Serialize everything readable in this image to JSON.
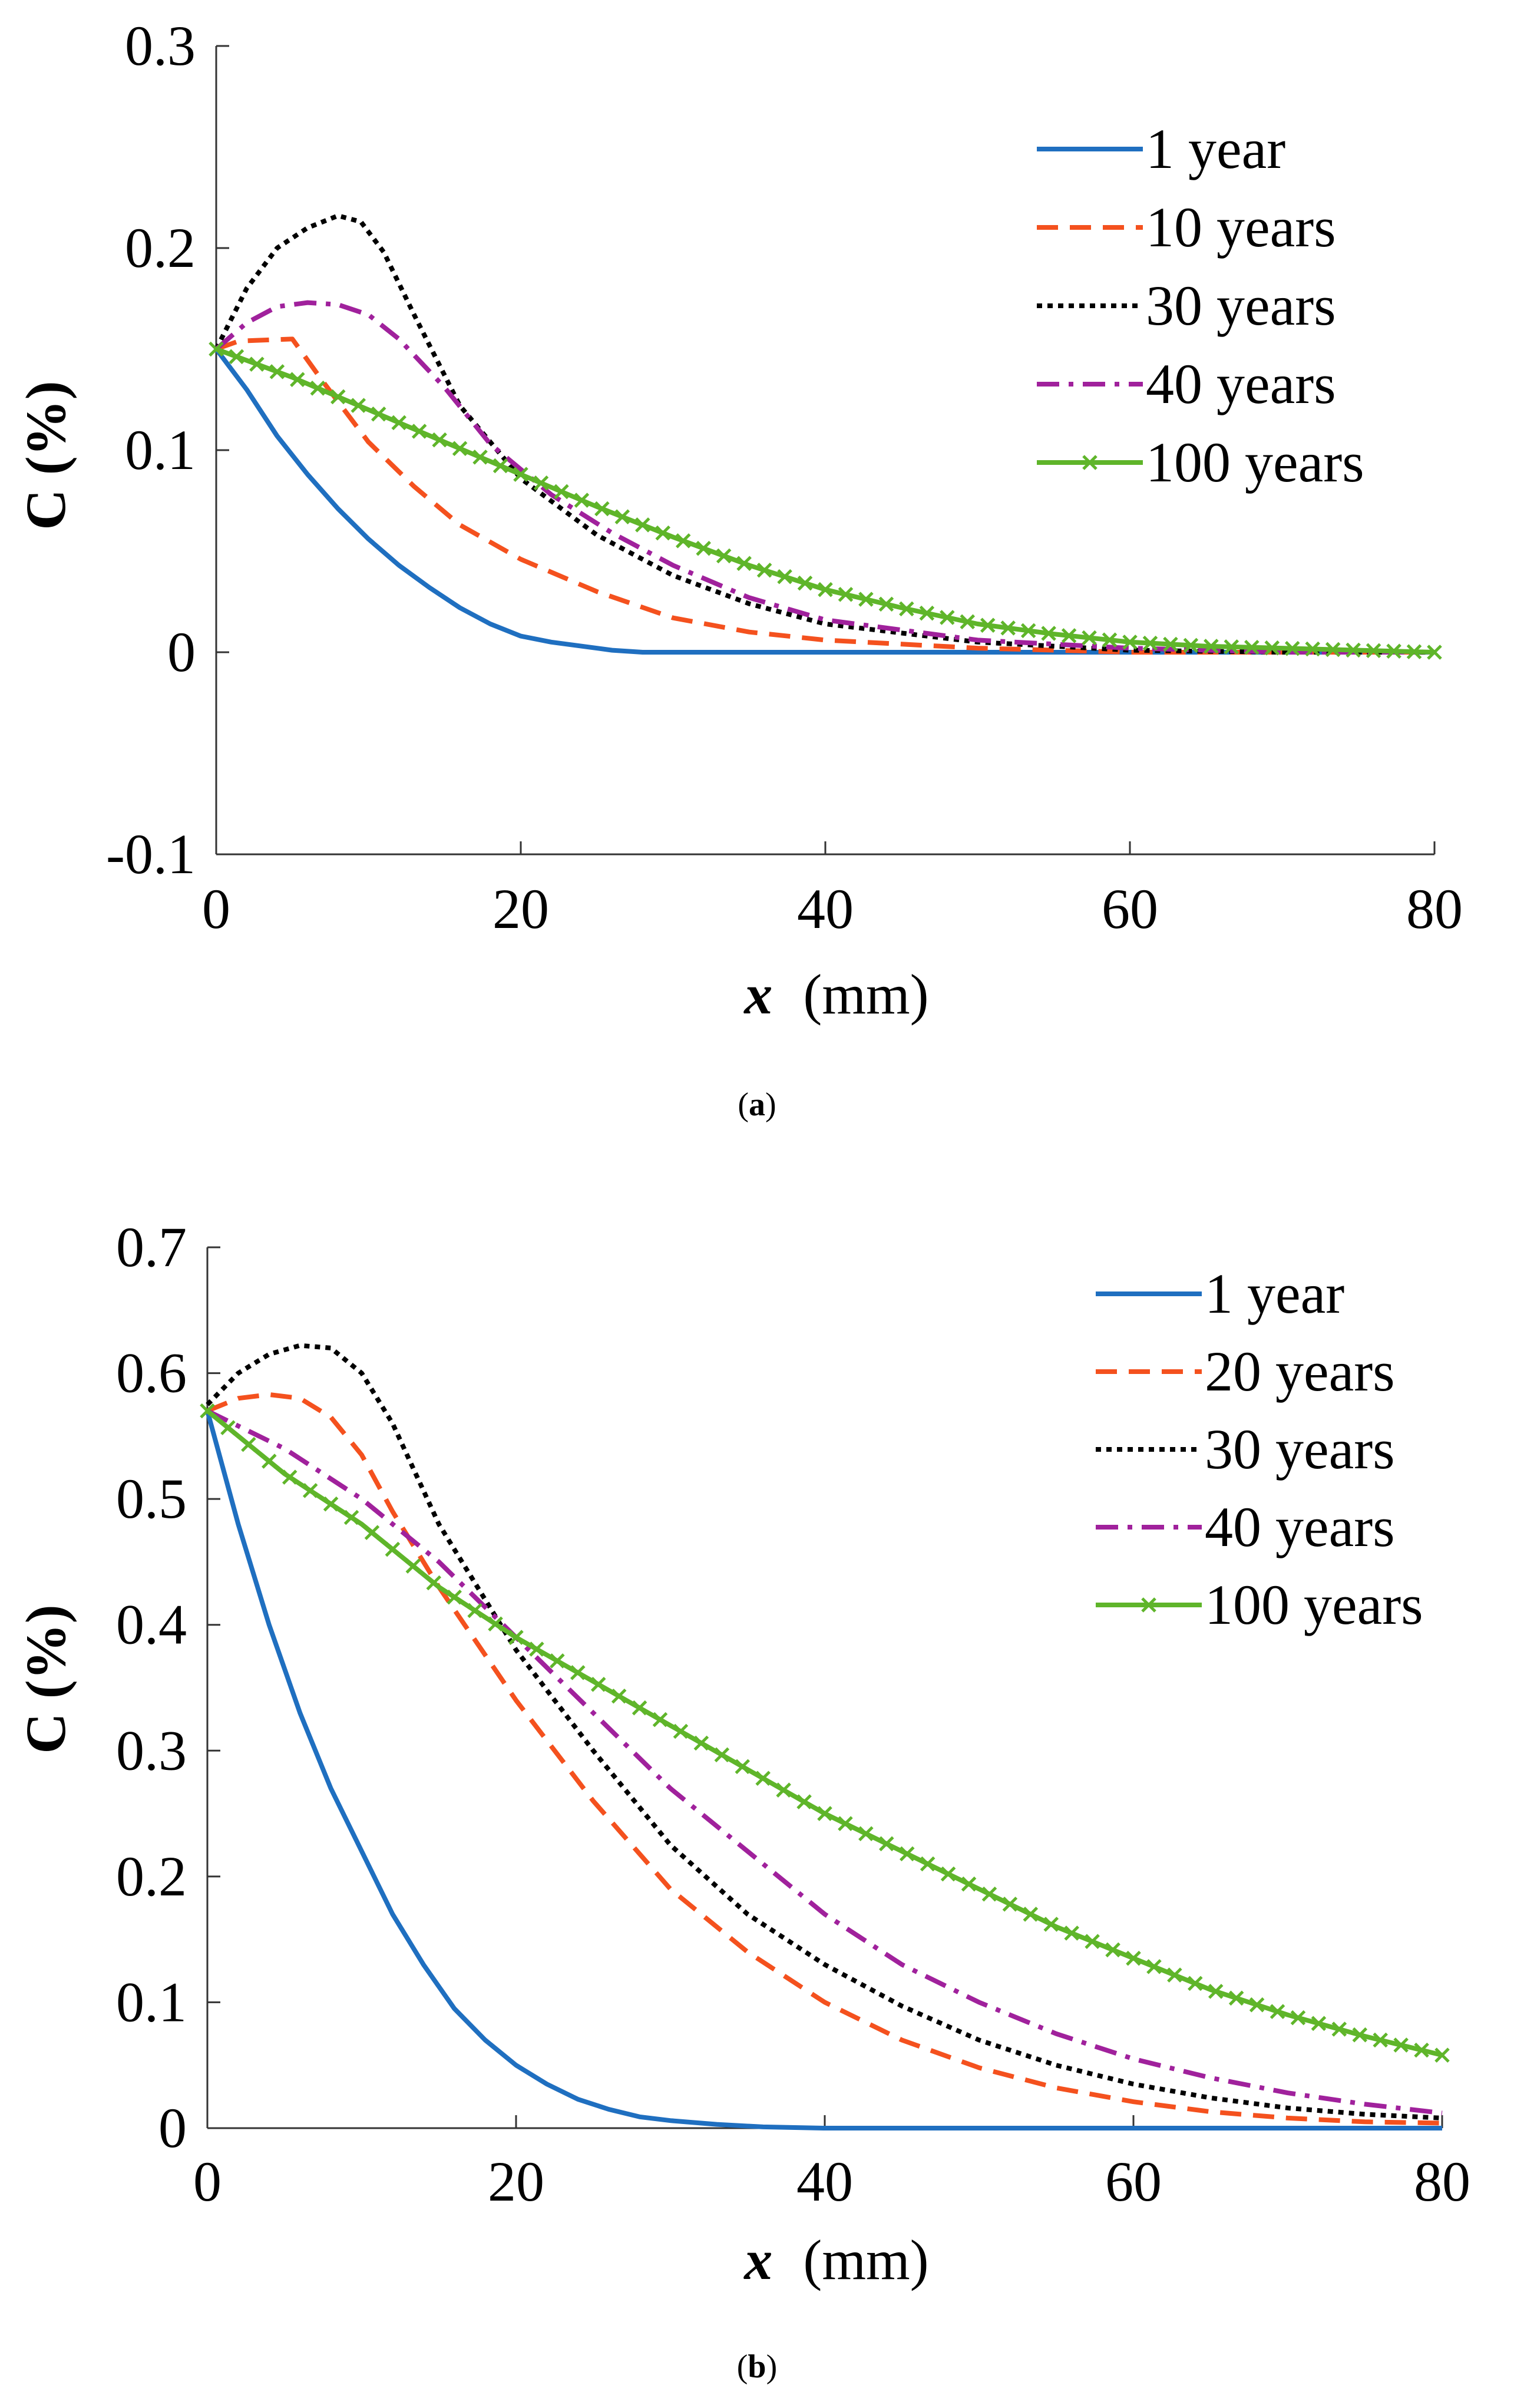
{
  "chart_data": [
    {
      "type": "line",
      "caption": "(a)",
      "caption_letter": "a",
      "xlabel_var": "x",
      "xlabel_unit": "(mm)",
      "ylabel": "C (%)",
      "xlim": [
        0,
        80
      ],
      "ylim": [
        -0.1,
        0.3
      ],
      "x_ticks": [
        0,
        20,
        40,
        60,
        80
      ],
      "y_ticks": [
        -0.1,
        0,
        0.1,
        0.2,
        0.3
      ],
      "x_tick_labels": [
        "0",
        "20",
        "40",
        "60",
        "80"
      ],
      "y_tick_labels": [
        "-0.1",
        "0",
        "0.1",
        "0.2",
        "0.3"
      ],
      "grid": false,
      "legend_position": "top-right",
      "series": [
        {
          "name": "1 year",
          "color": "#1f6fc0",
          "style": "solid",
          "points": [
            [
              0,
              0.15
            ],
            [
              2,
              0.13
            ],
            [
              4,
              0.107
            ],
            [
              6,
              0.088
            ],
            [
              8,
              0.071
            ],
            [
              10,
              0.056
            ],
            [
              12,
              0.043
            ],
            [
              14,
              0.032
            ],
            [
              16,
              0.022
            ],
            [
              18,
              0.014
            ],
            [
              20,
              0.008
            ],
            [
              22,
              0.005
            ],
            [
              24,
              0.003
            ],
            [
              26,
              0.001
            ],
            [
              28,
              0.0
            ],
            [
              35,
              0.0
            ],
            [
              50,
              0.0
            ],
            [
              80,
              0.0
            ]
          ]
        },
        {
          "name": "10 years",
          "color": "#f4511e",
          "style": "dashed",
          "points": [
            [
              0,
              0.15
            ],
            [
              1.5,
              0.154
            ],
            [
              5,
              0.155
            ],
            [
              7,
              0.134
            ],
            [
              10,
              0.104
            ],
            [
              13,
              0.082
            ],
            [
              16,
              0.063
            ],
            [
              20,
              0.046
            ],
            [
              25,
              0.03
            ],
            [
              30,
              0.017
            ],
            [
              35,
              0.01
            ],
            [
              40,
              0.006
            ],
            [
              50,
              0.002
            ],
            [
              60,
              0.0
            ],
            [
              80,
              0.0
            ]
          ]
        },
        {
          "name": "30 years",
          "color": "#000000",
          "style": "dotted",
          "points": [
            [
              0,
              0.15
            ],
            [
              2,
              0.18
            ],
            [
              4,
              0.2
            ],
            [
              6,
              0.21
            ],
            [
              8,
              0.216
            ],
            [
              9.5,
              0.213
            ],
            [
              11,
              0.198
            ],
            [
              13,
              0.167
            ],
            [
              16,
              0.122
            ],
            [
              20,
              0.086
            ],
            [
              25,
              0.058
            ],
            [
              30,
              0.038
            ],
            [
              35,
              0.024
            ],
            [
              40,
              0.014
            ],
            [
              50,
              0.005
            ],
            [
              60,
              0.001
            ],
            [
              70,
              0.0
            ],
            [
              80,
              0.0
            ]
          ]
        },
        {
          "name": "40 years",
          "color": "#a0219c",
          "style": "dashdot",
          "points": [
            [
              0,
              0.15
            ],
            [
              2,
              0.163
            ],
            [
              4,
              0.171
            ],
            [
              6,
              0.173
            ],
            [
              8,
              0.172
            ],
            [
              10,
              0.167
            ],
            [
              12,
              0.155
            ],
            [
              15,
              0.131
            ],
            [
              18,
              0.103
            ],
            [
              22,
              0.078
            ],
            [
              26,
              0.059
            ],
            [
              30,
              0.043
            ],
            [
              35,
              0.027
            ],
            [
              40,
              0.016
            ],
            [
              50,
              0.006
            ],
            [
              60,
              0.002
            ],
            [
              70,
              0.0
            ],
            [
              80,
              0.0
            ]
          ]
        },
        {
          "name": "100 years",
          "color": "#5fb52a",
          "style": "solid-x",
          "points": [
            [
              0,
              0.15
            ],
            [
              5,
              0.136
            ],
            [
              10,
              0.12
            ],
            [
              15,
              0.104
            ],
            [
              20,
              0.088
            ],
            [
              25,
              0.072
            ],
            [
              30,
              0.057
            ],
            [
              35,
              0.043
            ],
            [
              40,
              0.031
            ],
            [
              45,
              0.022
            ],
            [
              50,
              0.014
            ],
            [
              55,
              0.009
            ],
            [
              60,
              0.005
            ],
            [
              65,
              0.003
            ],
            [
              70,
              0.002
            ],
            [
              75,
              0.001
            ],
            [
              80,
              0.0
            ]
          ]
        }
      ]
    },
    {
      "type": "line",
      "caption": "(b)",
      "caption_letter": "b",
      "xlabel_var": "x",
      "xlabel_unit": "(mm)",
      "ylabel": "C (%)",
      "xlim": [
        0,
        80
      ],
      "ylim": [
        0,
        0.7
      ],
      "x_ticks": [
        0,
        20,
        40,
        60,
        80
      ],
      "y_ticks": [
        0,
        0.1,
        0.2,
        0.3,
        0.4,
        0.5,
        0.6,
        0.7
      ],
      "x_tick_labels": [
        "0",
        "20",
        "40",
        "60",
        "80"
      ],
      "y_tick_labels": [
        "0",
        "0.1",
        "0.2",
        "0.3",
        "0.4",
        "0.5",
        "0.6",
        "0.7"
      ],
      "grid": false,
      "legend_position": "top-right",
      "series": [
        {
          "name": "1 year",
          "color": "#1f6fc0",
          "style": "solid",
          "points": [
            [
              0,
              0.57
            ],
            [
              2,
              0.48
            ],
            [
              4,
              0.4
            ],
            [
              6,
              0.33
            ],
            [
              8,
              0.27
            ],
            [
              10,
              0.22
            ],
            [
              12,
              0.17
            ],
            [
              14,
              0.13
            ],
            [
              16,
              0.095
            ],
            [
              18,
              0.07
            ],
            [
              20,
              0.05
            ],
            [
              22,
              0.035
            ],
            [
              24,
              0.023
            ],
            [
              26,
              0.015
            ],
            [
              28,
              0.009
            ],
            [
              30,
              0.006
            ],
            [
              33,
              0.003
            ],
            [
              36,
              0.001
            ],
            [
              40,
              0.0
            ],
            [
              80,
              0.0
            ]
          ]
        },
        {
          "name": "20 years",
          "color": "#f4511e",
          "style": "dashed",
          "points": [
            [
              0,
              0.57
            ],
            [
              2,
              0.58
            ],
            [
              4,
              0.583
            ],
            [
              6,
              0.58
            ],
            [
              8,
              0.565
            ],
            [
              10,
              0.535
            ],
            [
              12,
              0.49
            ],
            [
              15,
              0.43
            ],
            [
              20,
              0.34
            ],
            [
              25,
              0.26
            ],
            [
              30,
              0.19
            ],
            [
              35,
              0.14
            ],
            [
              40,
              0.1
            ],
            [
              45,
              0.07
            ],
            [
              50,
              0.048
            ],
            [
              55,
              0.032
            ],
            [
              60,
              0.021
            ],
            [
              65,
              0.013
            ],
            [
              70,
              0.008
            ],
            [
              75,
              0.005
            ],
            [
              80,
              0.004
            ]
          ]
        },
        {
          "name": "30 years",
          "color": "#000000",
          "style": "dotted",
          "points": [
            [
              0,
              0.575
            ],
            [
              2,
              0.6
            ],
            [
              4,
              0.615
            ],
            [
              6,
              0.622
            ],
            [
              8,
              0.62
            ],
            [
              10,
              0.6
            ],
            [
              12,
              0.56
            ],
            [
              15,
              0.48
            ],
            [
              20,
              0.38
            ],
            [
              25,
              0.3
            ],
            [
              30,
              0.225
            ],
            [
              35,
              0.17
            ],
            [
              40,
              0.13
            ],
            [
              45,
              0.097
            ],
            [
              50,
              0.07
            ],
            [
              55,
              0.05
            ],
            [
              60,
              0.035
            ],
            [
              65,
              0.024
            ],
            [
              70,
              0.016
            ],
            [
              75,
              0.011
            ],
            [
              80,
              0.008
            ]
          ]
        },
        {
          "name": "40 years",
          "color": "#a0219c",
          "style": "dashdot",
          "points": [
            [
              0,
              0.57
            ],
            [
              5,
              0.54
            ],
            [
              10,
              0.5
            ],
            [
              15,
              0.45
            ],
            [
              20,
              0.39
            ],
            [
              25,
              0.33
            ],
            [
              30,
              0.27
            ],
            [
              35,
              0.22
            ],
            [
              40,
              0.17
            ],
            [
              45,
              0.13
            ],
            [
              50,
              0.1
            ],
            [
              55,
              0.075
            ],
            [
              60,
              0.055
            ],
            [
              65,
              0.04
            ],
            [
              70,
              0.028
            ],
            [
              75,
              0.019
            ],
            [
              80,
              0.012
            ]
          ]
        },
        {
          "name": "100 years",
          "color": "#5fb52a",
          "style": "solid-x",
          "points": [
            [
              0,
              0.57
            ],
            [
              5,
              0.52
            ],
            [
              10,
              0.48
            ],
            [
              15,
              0.43
            ],
            [
              20,
              0.39
            ],
            [
              25,
              0.355
            ],
            [
              30,
              0.32
            ],
            [
              35,
              0.285
            ],
            [
              40,
              0.25
            ],
            [
              45,
              0.22
            ],
            [
              50,
              0.19
            ],
            [
              55,
              0.16
            ],
            [
              60,
              0.135
            ],
            [
              65,
              0.11
            ],
            [
              70,
              0.09
            ],
            [
              75,
              0.073
            ],
            [
              80,
              0.058
            ]
          ]
        }
      ]
    }
  ]
}
